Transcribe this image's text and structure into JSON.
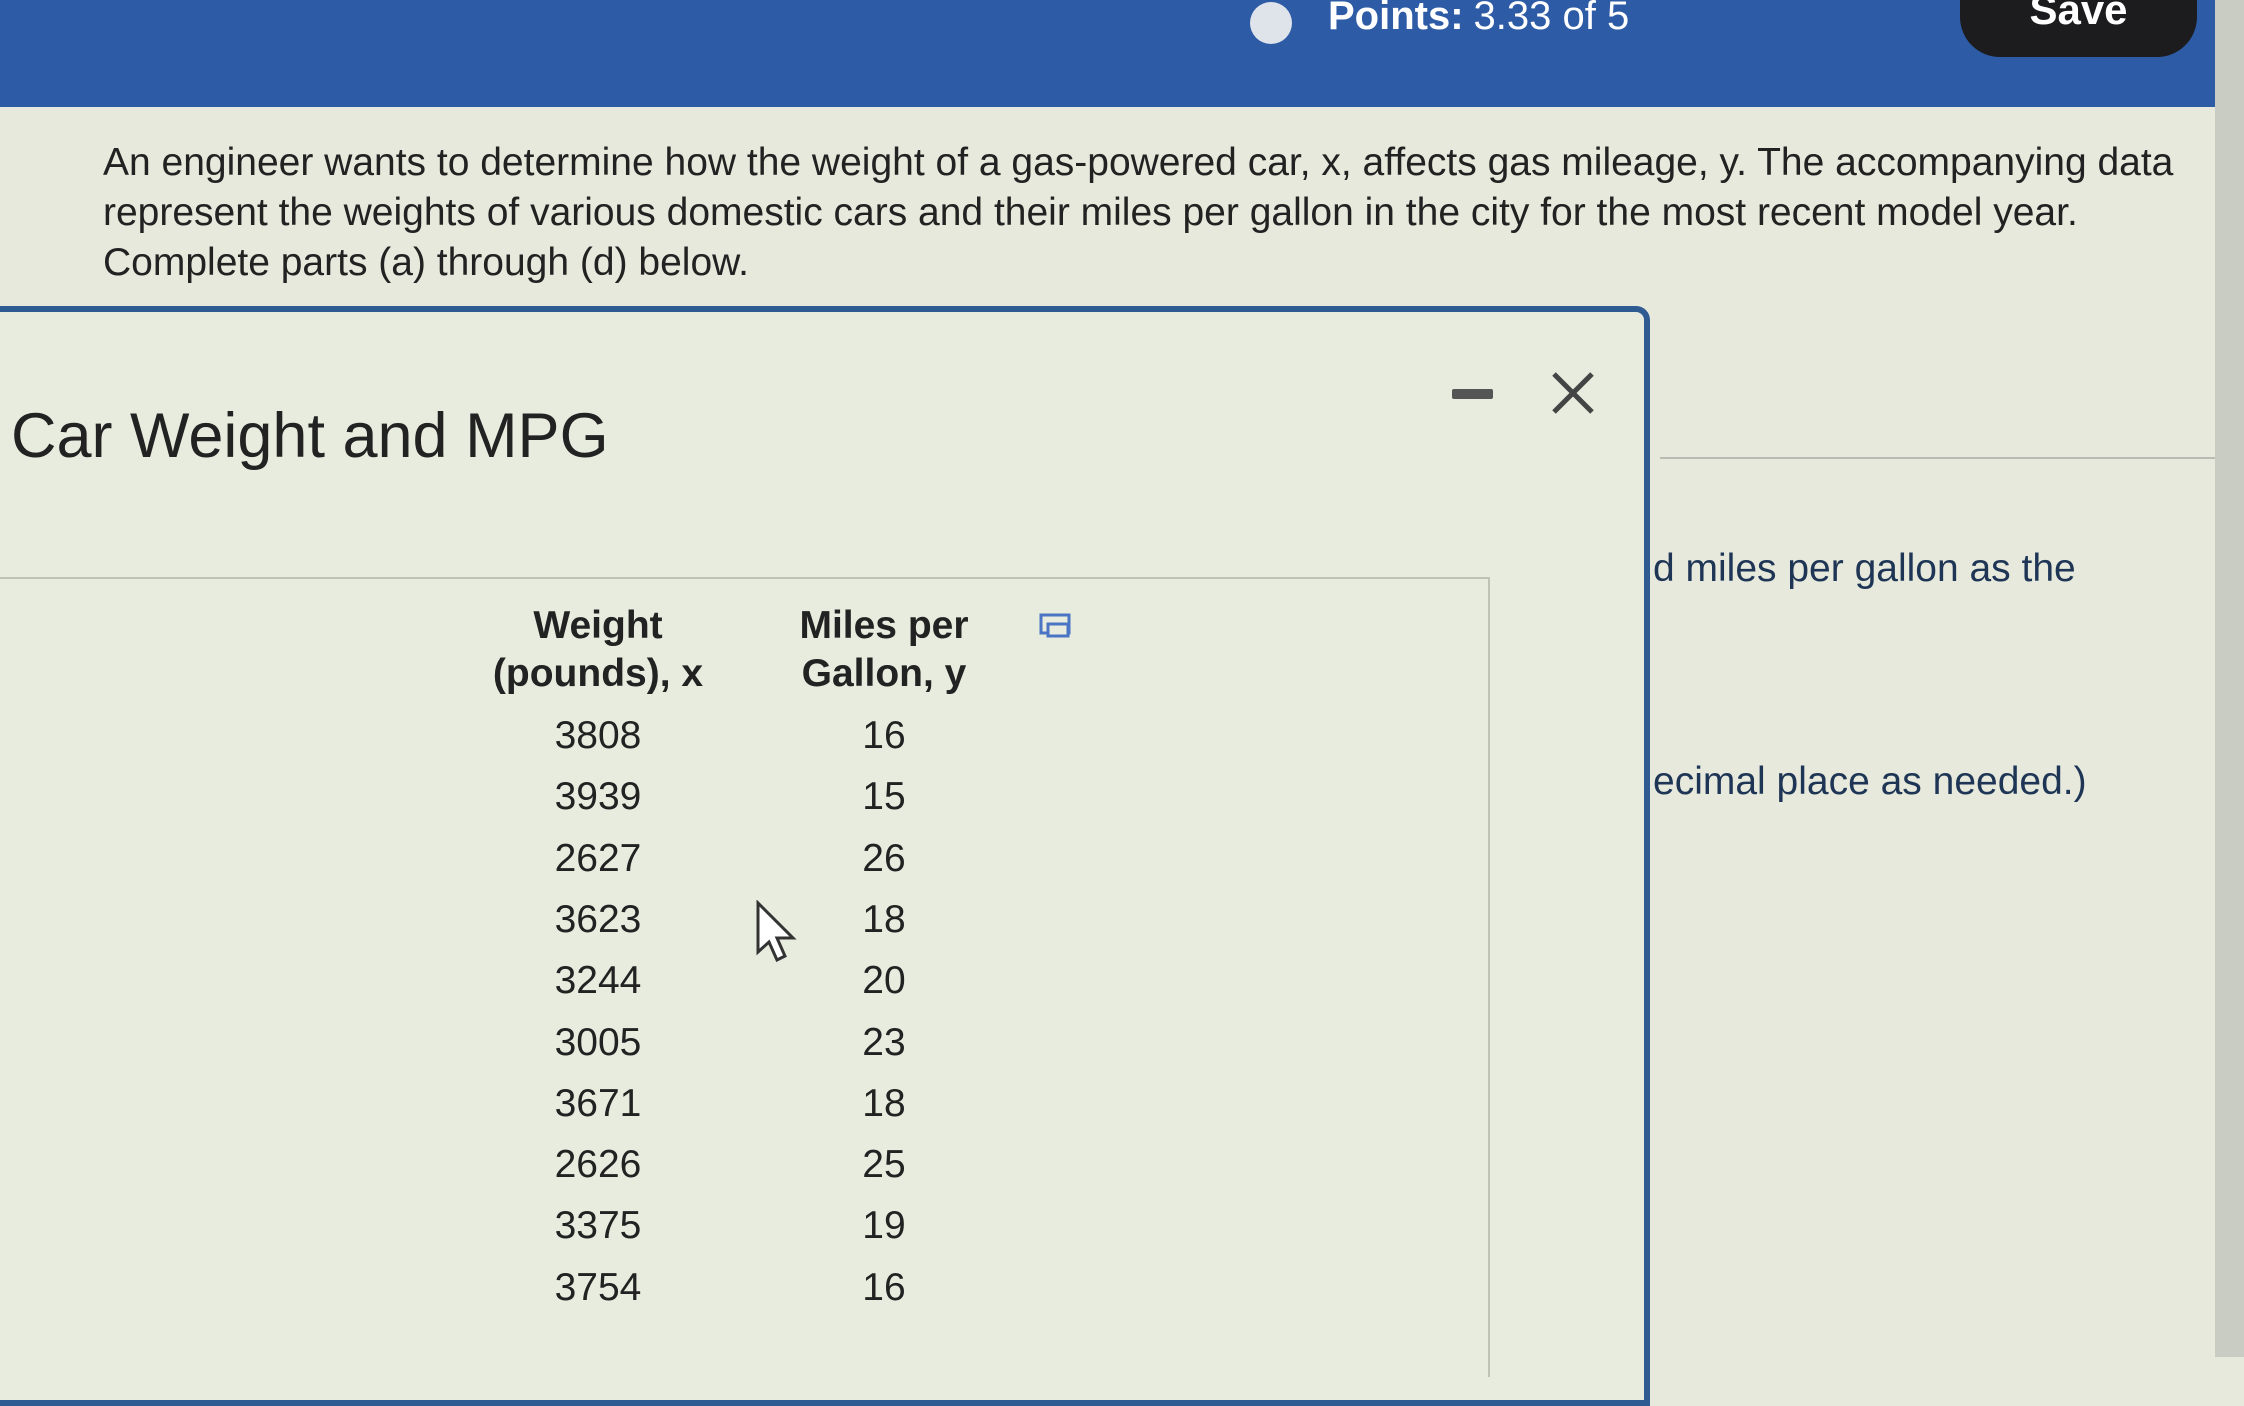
{
  "header": {
    "points_label": "Points:",
    "points_value": "3.33 of 5",
    "save": "Save"
  },
  "question": {
    "text": "An engineer wants to determine how the weight of a gas-powered car, x, affects gas mileage, y. The accompanying data represent the weights of various domestic cars and their miles per gallon in the city for the most recent model year. Complete parts (a) through (d) below."
  },
  "background_fragments": [
    "d miles per gallon as the",
    "ecimal place as needed.)"
  ],
  "popup": {
    "title": "Car Weight and MPG",
    "table": {
      "headers": [
        [
          "Weight",
          "(pounds), x"
        ],
        [
          "Miles per",
          "Gallon, y"
        ]
      ],
      "rows": [
        [
          3808,
          16
        ],
        [
          3939,
          15
        ],
        [
          2627,
          26
        ],
        [
          3623,
          18
        ],
        [
          3244,
          20
        ],
        [
          3005,
          23
        ],
        [
          3671,
          18
        ],
        [
          2626,
          25
        ],
        [
          3375,
          19
        ],
        [
          3754,
          16
        ]
      ]
    }
  }
}
